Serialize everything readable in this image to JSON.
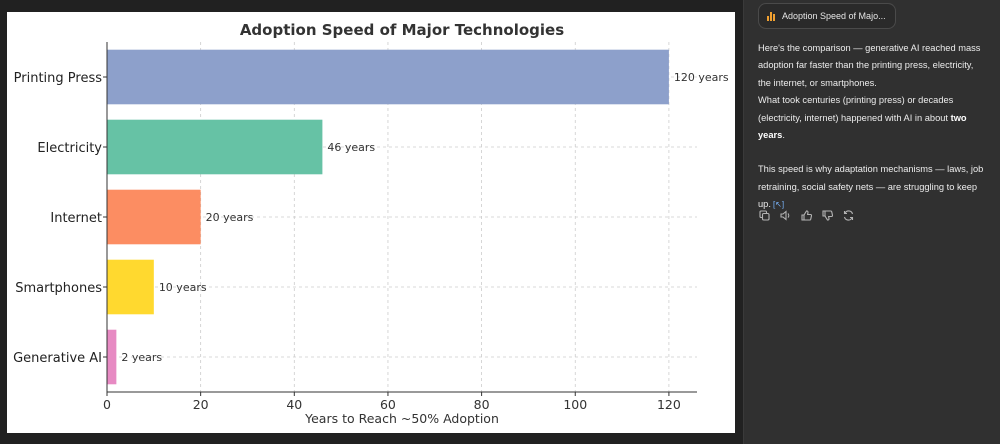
{
  "chart_data": {
    "type": "bar",
    "orientation": "horizontal",
    "title": "Adoption Speed of Major Technologies",
    "xlabel": "Years to Reach ~50% Adoption",
    "ylabel": "",
    "xlim": [
      0,
      126
    ],
    "xticks": [
      0,
      20,
      40,
      60,
      80,
      100,
      120
    ],
    "grid": true,
    "categories": [
      "Printing Press",
      "Electricity",
      "Internet",
      "Smartphones",
      "Generative AI"
    ],
    "values": [
      120,
      46,
      20,
      10,
      2
    ],
    "value_labels": [
      "120 years",
      "46 years",
      "20 years",
      "10 years",
      "2 years"
    ],
    "colors": [
      "#8da0cb",
      "#66c2a5",
      "#fc8d62",
      "#ffd92f",
      "#e78ac3"
    ]
  },
  "sidebar": {
    "chip_label": "Adoption Speed of Majo...",
    "para1_l1": "Here's the comparison — generative AI reached mass",
    "para1_l2": "adoption far faster than the printing press, electricity,",
    "para1_l3": "the internet, or smartphones.",
    "para2_l1": "What took centuries (printing press) or decades",
    "para2_l2a": "(electricity, internet) happened with AI in about ",
    "para2_l2b": "two",
    "para2_l3": "years",
    "para2_l3_end": ".",
    "para3_l1": "This speed is why adaptation mechanisms — laws, job",
    "para3_l2": "retraining, social safety nets — are struggling to keep",
    "para3_l3": "up.",
    "cite": "[↖]"
  }
}
